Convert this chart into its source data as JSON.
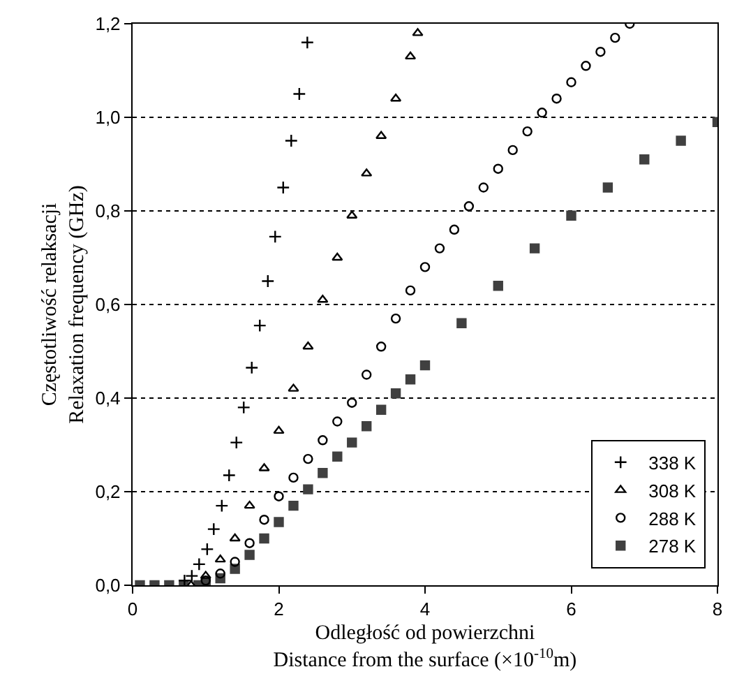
{
  "chart_data": {
    "type": "scatter",
    "xlabel": "Odległość od powierzchni\nDistance from the surface (×10$^{-10}$m)",
    "ylabel": "Częstotliwość relaksacji\nRelaxation frequency (GHz)",
    "xlim": [
      0,
      8
    ],
    "xticks": [
      0,
      2,
      4,
      6,
      8
    ],
    "ylim": [
      0,
      1.2
    ],
    "yticks": [
      {
        "value": 0,
        "label": "0,0"
      },
      {
        "value": 0.2,
        "label": "0,2"
      },
      {
        "value": 0.4,
        "label": "0,4"
      },
      {
        "value": 0.6,
        "label": "0,6"
      },
      {
        "value": 0.8,
        "label": "0,8"
      },
      {
        "value": 1.0,
        "label": "1,0"
      },
      {
        "value": 1.2,
        "label": "1,2"
      }
    ],
    "grid": "y",
    "legend": "bottom right",
    "series": [
      {
        "name": "338 K",
        "color": "#000000",
        "marker": "cross",
        "x": [
          0.71,
          0.81,
          0.91,
          1.02,
          1.11,
          1.22,
          1.32,
          1.42,
          1.52,
          1.63,
          1.74,
          1.85,
          1.95,
          2.06,
          2.17,
          2.28,
          2.39
        ],
        "values": [
          0.01,
          0.02,
          0.045,
          0.077,
          0.12,
          0.17,
          0.235,
          0.305,
          0.38,
          0.465,
          0.555,
          0.65,
          0.745,
          0.85,
          0.95,
          1.05,
          1.16
        ]
      },
      {
        "name": "308 K",
        "color": "#000000",
        "marker": "triangle",
        "x": [
          0.8,
          1.0,
          1.2,
          1.4,
          1.6,
          1.8,
          2.0,
          2.2,
          2.4,
          2.6,
          2.8,
          3.0,
          3.2,
          3.4,
          3.6,
          3.8,
          3.9
        ],
        "values": [
          0.0,
          0.02,
          0.055,
          0.1,
          0.17,
          0.25,
          0.33,
          0.42,
          0.51,
          0.61,
          0.7,
          0.79,
          0.88,
          0.96,
          1.04,
          1.13,
          1.18
        ]
      },
      {
        "name": "288 K",
        "color": "#000000",
        "marker": "circle",
        "x": [
          1.0,
          1.2,
          1.4,
          1.6,
          1.8,
          2.0,
          2.2,
          2.4,
          2.6,
          2.8,
          3.0,
          3.2,
          3.4,
          3.6,
          3.8,
          4.0,
          4.2,
          4.4,
          4.6,
          4.8,
          5.0,
          5.2,
          5.4,
          5.6,
          5.8,
          6.0,
          6.2,
          6.4,
          6.6,
          6.8
        ],
        "values": [
          0.01,
          0.025,
          0.05,
          0.09,
          0.14,
          0.19,
          0.23,
          0.27,
          0.31,
          0.35,
          0.39,
          0.45,
          0.51,
          0.57,
          0.63,
          0.68,
          0.72,
          0.76,
          0.81,
          0.85,
          0.89,
          0.93,
          0.97,
          1.01,
          1.04,
          1.075,
          1.11,
          1.14,
          1.17,
          1.2
        ]
      },
      {
        "name": "278 K",
        "color": "#404040",
        "marker": "square",
        "x": [
          0.1,
          0.3,
          0.5,
          0.7,
          0.9,
          1.0,
          1.2,
          1.4,
          1.6,
          1.8,
          2.0,
          2.2,
          2.4,
          2.6,
          2.8,
          3.0,
          3.2,
          3.4,
          3.6,
          3.8,
          4.0,
          4.5,
          5.0,
          5.5,
          6.0,
          6.5,
          7.0,
          7.5,
          8.0
        ],
        "values": [
          0.0,
          0.0,
          0.0,
          0.0,
          0.0,
          0.005,
          0.015,
          0.035,
          0.065,
          0.1,
          0.135,
          0.17,
          0.205,
          0.24,
          0.275,
          0.305,
          0.34,
          0.375,
          0.41,
          0.44,
          0.47,
          0.56,
          0.64,
          0.72,
          0.79,
          0.85,
          0.91,
          0.95,
          0.99
        ]
      }
    ]
  }
}
